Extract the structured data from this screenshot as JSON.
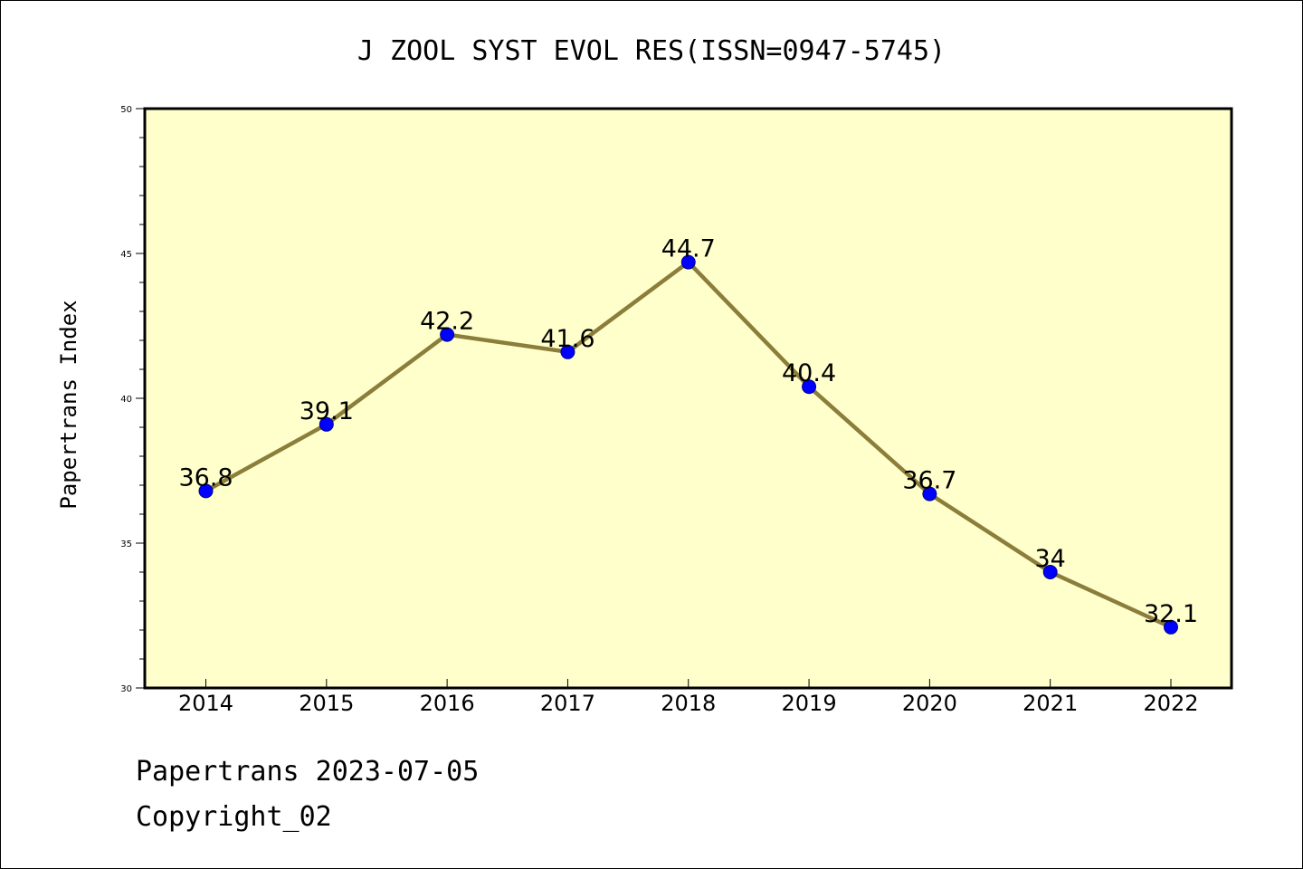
{
  "chart_data": {
    "type": "line",
    "title": "J ZOOL SYST EVOL RES(ISSN=0947-5745)",
    "xlabel": "",
    "ylabel": "Papertrans Index",
    "categories": [
      "2014",
      "2015",
      "2016",
      "2017",
      "2018",
      "2019",
      "2020",
      "2021",
      "2022"
    ],
    "series": [
      {
        "values": [
          36.8,
          39.1,
          42.2,
          41.6,
          44.7,
          40.4,
          36.7,
          34,
          32.1
        ]
      }
    ],
    "data_labels": [
      "36.8",
      "39.1",
      "42.2",
      "41.6",
      "44.7",
      "40.4",
      "36.7",
      "34",
      "32.1"
    ],
    "ylim": [
      30,
      50
    ],
    "yticks": [
      "30",
      "35",
      "40",
      "45",
      "50"
    ],
    "grid": false,
    "legend": "none",
    "colors": {
      "plot_background": "#ffffcc",
      "line": "#8b7d3a",
      "marker": "#0000ff"
    }
  },
  "footer": {
    "date_line": "Papertrans 2023-07-05",
    "copyright_line": "Copyright_02"
  }
}
